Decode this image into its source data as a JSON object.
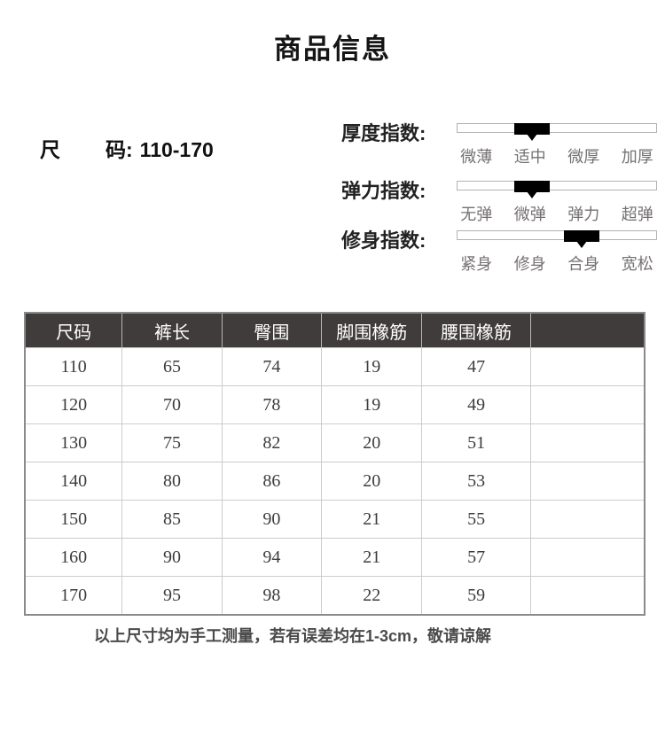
{
  "page": {
    "title": "商品信息"
  },
  "size_info": {
    "label_first": "尺",
    "label_rest": "码:",
    "value": "110-170"
  },
  "indicators": [
    {
      "name": "厚度指数:",
      "ticks": [
        "微薄",
        "适中",
        "微厚",
        "加厚"
      ],
      "active": "适中",
      "active_index": 1
    },
    {
      "name": "弹力指数:",
      "ticks": [
        "无弹",
        "微弹",
        "弹力",
        "超弹"
      ],
      "active": "微弹",
      "active_index": 1
    },
    {
      "name": "修身指数:",
      "ticks": [
        "紧身",
        "修身",
        "合身",
        "宽松"
      ],
      "active": "合身",
      "active_index": 2
    }
  ],
  "size_table": {
    "columns": [
      "尺码",
      "裤长",
      "臀围",
      "脚围橡筋",
      "腰围橡筋",
      ""
    ],
    "rows": [
      [
        "110",
        "65",
        "74",
        "19",
        "47",
        ""
      ],
      [
        "120",
        "70",
        "78",
        "19",
        "49",
        ""
      ],
      [
        "130",
        "75",
        "82",
        "20",
        "51",
        ""
      ],
      [
        "140",
        "80",
        "86",
        "20",
        "53",
        ""
      ],
      [
        "150",
        "85",
        "90",
        "21",
        "55",
        ""
      ],
      [
        "160",
        "90",
        "94",
        "21",
        "57",
        ""
      ],
      [
        "170",
        "95",
        "98",
        "22",
        "59",
        ""
      ]
    ]
  },
  "footer": {
    "note": "以上尺寸均为手工测量，若有误差均在1-3cm，敬请谅解"
  },
  "colors": {
    "header_bg": "#403c3b",
    "header_text": "#ffffff",
    "indicator_fill": "#000000",
    "tick_text": "#757172",
    "body_border": "#cccccc",
    "outer_border": "#8a8a8a"
  }
}
